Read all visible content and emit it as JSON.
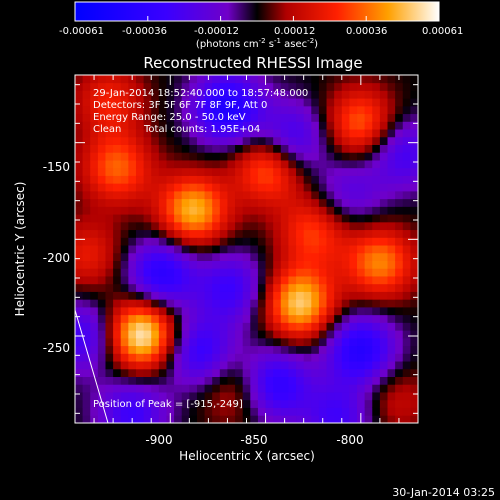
{
  "colorbar": {
    "tick_labels": [
      "-0.00061",
      "-0.00036",
      "-0.00012",
      "0.00012",
      "0.00036",
      "0.00061"
    ],
    "unit_base": "(photons cm",
    "unit_exp1": "-2",
    "unit_mid": " s",
    "unit_exp2": "-1",
    "unit_mid2": " asec",
    "unit_exp3": "-2",
    "unit_end": ")"
  },
  "annotations": {
    "time_range": "29-Jan-2014 18:52:40.000 to 18:57:48.000",
    "detectors": "Detectors: 3F 5F 6F 7F 8F 9F, Att 0",
    "energy": "Energy Range: 25.0 - 50.0 keV",
    "clean": "Clean",
    "counts": "Total counts: 1.95E+04",
    "peak": "Position of Peak = [-915,-249]"
  },
  "footer_date": "30-Jan-2014 03:25",
  "chart_data": {
    "type": "heatmap",
    "title": "Reconstructed RHESSI Image",
    "xlabel": "Heliocentric X (arcsec)",
    "ylabel": "Heliocentric Y (arcsec)",
    "xlim": [
      -950,
      -770
    ],
    "ylim": [
      -295,
      -115
    ],
    "xticks": [
      -900,
      -850,
      -800
    ],
    "yticks": [
      -150,
      -200,
      -250
    ],
    "color_range": [
      -0.00061,
      0.00061
    ],
    "peak": {
      "x": -915,
      "y": -249
    },
    "sources": [
      {
        "x": -915,
        "y": -249,
        "value": 0.00061
      },
      {
        "x": -832,
        "y": -233,
        "value": 0.00052
      },
      {
        "x": -790,
        "y": -212,
        "value": 0.0004
      },
      {
        "x": -888,
        "y": -185,
        "value": 0.00048
      },
      {
        "x": -848,
        "y": -163,
        "value": 0.00038
      },
      {
        "x": -825,
        "y": -196,
        "value": 0.0003
      },
      {
        "x": -928,
        "y": -163,
        "value": 0.00035
      },
      {
        "x": -932,
        "y": -128,
        "value": 0.00024
      },
      {
        "x": -800,
        "y": -140,
        "value": 0.00036
      },
      {
        "x": -866,
        "y": -278,
        "value": 0.00018
      },
      {
        "x": -782,
        "y": -283,
        "value": 0.00015
      },
      {
        "x": -943,
        "y": -208,
        "value": 0.00022
      }
    ],
    "sinks": [
      {
        "x": -870,
        "y": -132,
        "value": -0.00045
      },
      {
        "x": -836,
        "y": -148,
        "value": -0.00032
      },
      {
        "x": -905,
        "y": -218,
        "value": -0.0004
      },
      {
        "x": -868,
        "y": -225,
        "value": -0.0003
      },
      {
        "x": -945,
        "y": -250,
        "value": -0.0003
      },
      {
        "x": -885,
        "y": -258,
        "value": -0.00034
      },
      {
        "x": -845,
        "y": -275,
        "value": -0.00038
      },
      {
        "x": -800,
        "y": -257,
        "value": -0.00042
      },
      {
        "x": -778,
        "y": -155,
        "value": -0.00028
      },
      {
        "x": -806,
        "y": -176,
        "value": -0.0002
      },
      {
        "x": -920,
        "y": -290,
        "value": -0.0003
      },
      {
        "x": -812,
        "y": -292,
        "value": -0.00028
      }
    ]
  }
}
